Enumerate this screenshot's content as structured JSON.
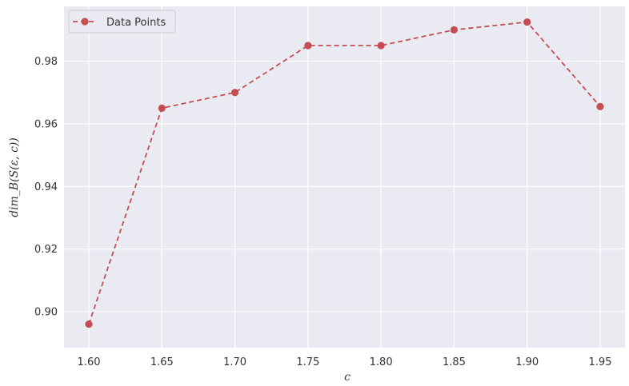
{
  "chart_data": {
    "type": "line",
    "title": "",
    "xlabel": "c",
    "ylabel": "dim_B(S(ε, c))",
    "x": [
      1.6,
      1.65,
      1.7,
      1.75,
      1.8,
      1.85,
      1.9,
      1.95
    ],
    "series": [
      {
        "name": "Data Points",
        "values": [
          0.896,
          0.965,
          0.97,
          0.985,
          0.985,
          0.99,
          0.9925,
          0.9655
        ],
        "color": "#c44e52",
        "line_style": "dashed",
        "marker": "circle"
      }
    ],
    "x_ticks": [
      "1.60",
      "1.65",
      "1.70",
      "1.75",
      "1.80",
      "1.85",
      "1.90",
      "1.95"
    ],
    "y_ticks": [
      "0.90",
      "0.92",
      "0.94",
      "0.96",
      "0.98"
    ],
    "xlim": [
      1.583,
      1.967
    ],
    "ylim": [
      0.8885,
      0.9975
    ],
    "grid": true,
    "legend_position": "top-left",
    "plot_background": "#eaeaf2",
    "grid_color": "#ffffff"
  }
}
